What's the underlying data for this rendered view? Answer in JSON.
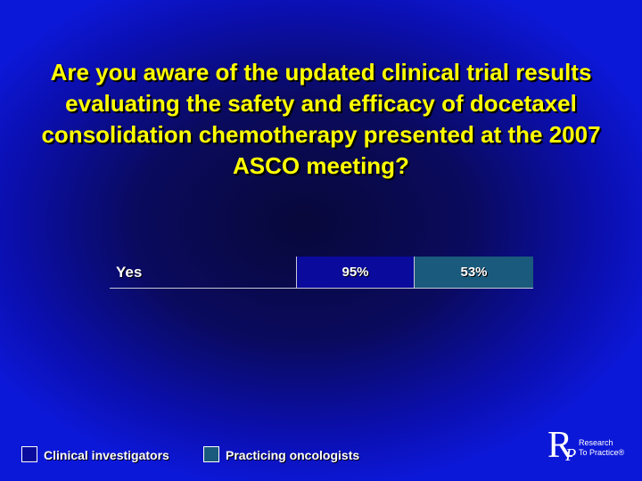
{
  "slide": {
    "title": "Are you aware of the updated clinical trial results evaluating the safety and efficacy of docetaxel consolidation chemotherapy presented at the 2007 ASCO meeting?"
  },
  "chart_data": {
    "type": "table",
    "title": "Are you aware of the updated clinical trial results evaluating the safety and efficacy of docetaxel consolidation chemotherapy presented at the 2007 ASCO meeting?",
    "categories": [
      "Yes"
    ],
    "series": [
      {
        "name": "Clinical investigators",
        "color": "#0a0a9c",
        "values": [
          95
        ],
        "labels": [
          "95%"
        ]
      },
      {
        "name": "Practicing oncologists",
        "color": "#1a5a7c",
        "values": [
          53
        ],
        "labels": [
          "53%"
        ]
      }
    ],
    "legend_placement": "bottom-left"
  },
  "legend": [
    {
      "label": "Clinical investigators",
      "color": "#0a0a9c"
    },
    {
      "label": "Practicing oncologists",
      "color": "#1a5a7c"
    }
  ],
  "logo": {
    "letter_r": "R",
    "letter_p": "P",
    "line1": "Research",
    "line2": "To Practice®"
  },
  "colors": {
    "title": "#ffff00",
    "background": "#0b0fb0"
  }
}
